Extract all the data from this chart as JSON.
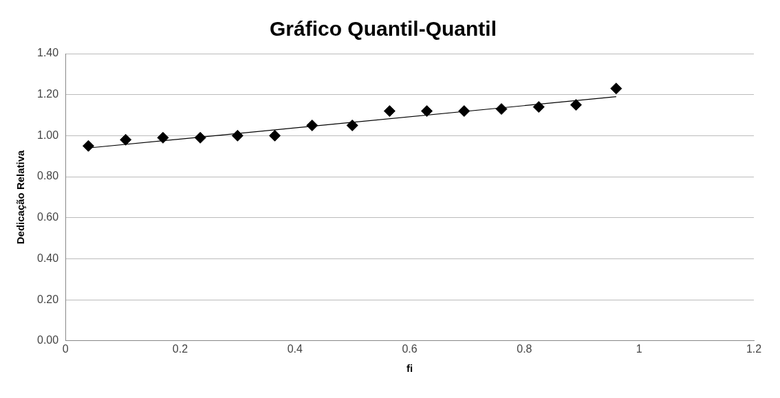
{
  "chart_data": {
    "type": "scatter",
    "title": "Gráfico Quantil-Quantil",
    "xlabel": "fi",
    "ylabel": "Dedicação Relativa",
    "x": [
      0.04,
      0.105,
      0.17,
      0.235,
      0.3,
      0.365,
      0.43,
      0.5,
      0.565,
      0.63,
      0.695,
      0.76,
      0.825,
      0.89,
      0.96
    ],
    "series": [
      {
        "type": "scatter",
        "color": "#000000",
        "marker": "diamond",
        "values": [
          0.95,
          0.98,
          0.99,
          0.99,
          1.0,
          1.0,
          1.05,
          1.05,
          1.12,
          1.12,
          1.12,
          1.13,
          1.14,
          1.15,
          1.23
        ]
      },
      {
        "type": "line",
        "color": "#000000",
        "marker": "none",
        "x": [
          0.04,
          0.96
        ],
        "values": [
          0.94,
          1.19
        ]
      }
    ],
    "xlim": [
      0,
      1.2
    ],
    "xticks": [
      0,
      0.2,
      0.4,
      0.6,
      0.8,
      1,
      1.2
    ],
    "ylim": [
      0,
      1.4
    ],
    "yticks": [
      {
        "value": 0,
        "label": "0.00"
      },
      {
        "value": 0.2,
        "label": "0.20"
      },
      {
        "value": 0.4,
        "label": "0.40"
      },
      {
        "value": 0.6,
        "label": "0.60"
      },
      {
        "value": 0.8,
        "label": "0.80"
      },
      {
        "value": 1,
        "label": "1.00"
      },
      {
        "value": 1.2,
        "label": "1.20"
      },
      {
        "value": 1.4,
        "label": "1.40"
      }
    ],
    "grid": "y",
    "legend": false
  }
}
